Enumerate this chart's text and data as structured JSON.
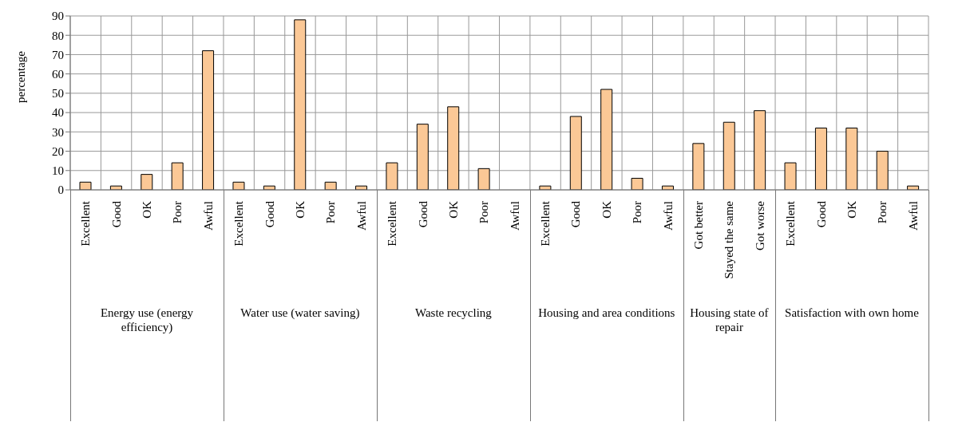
{
  "chart_data": {
    "type": "bar",
    "ylabel": "percentage",
    "categories": [
      "Excellent",
      "Good",
      "OK",
      "Poor",
      "Awful",
      "Excellent",
      "Good",
      "OK",
      "Poor",
      "Awful",
      "Excellent",
      "Good",
      "OK",
      "Poor",
      "Awful",
      "Excellent",
      "Good",
      "OK",
      "Poor",
      "Awful",
      "Got better",
      "Stayed the same",
      "Got worse",
      "Excellent",
      "Good",
      "OK",
      "Poor",
      "Awful"
    ],
    "series": [
      {
        "color": "#fbc896",
        "values": [
          4,
          2,
          8,
          14,
          72,
          4,
          2,
          88,
          4,
          2,
          14,
          34,
          43,
          11,
          null,
          2,
          38,
          52,
          6,
          2,
          24,
          35,
          41,
          14,
          32,
          32,
          20,
          2
        ]
      }
    ],
    "ylim": [
      0,
      90
    ],
    "yticks": [
      0,
      10,
      20,
      30,
      40,
      50,
      60,
      70,
      80,
      90
    ],
    "grid": true,
    "annotations": [
      "Energy use (energy efficiency)",
      "Water use (water saving)",
      "Waste recycling",
      "Housing and area conditions",
      "Housing state of repair",
      "Satisfaction with own home"
    ]
  }
}
